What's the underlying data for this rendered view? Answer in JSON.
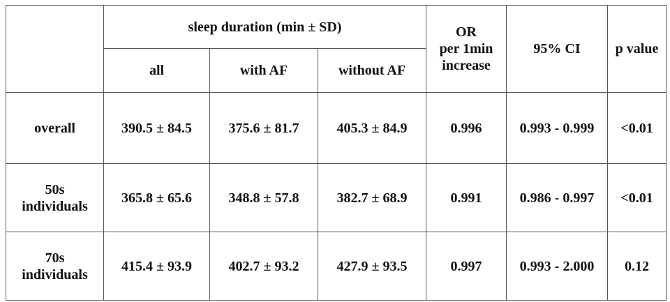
{
  "table": {
    "header": {
      "group": "sleep duration (min ± SD)",
      "sub": [
        "all",
        "with AF",
        "without AF"
      ],
      "or": [
        "OR",
        "per 1min",
        "increase"
      ],
      "ci": "95% CI",
      "p": "p value"
    },
    "rows": [
      {
        "label": [
          "overall"
        ],
        "cells": [
          "390.5 ± 84.5",
          "375.6 ± 81.7",
          "405.3 ± 84.9",
          "0.996",
          "0.993 - 0.999",
          "<0.01"
        ]
      },
      {
        "label": [
          "50s",
          "individuals"
        ],
        "cells": [
          "365.8 ± 65.6",
          "348.8 ± 57.8",
          "382.7 ± 68.9",
          "0.991",
          "0.986 - 0.997",
          "<0.01"
        ]
      },
      {
        "label": [
          "70s",
          "individuals"
        ],
        "cells": [
          "415.4 ± 93.9",
          "402.7 ± 93.2",
          "427.9 ± 93.5",
          "0.997",
          "0.993 - 2.000",
          "0.12"
        ]
      }
    ]
  }
}
